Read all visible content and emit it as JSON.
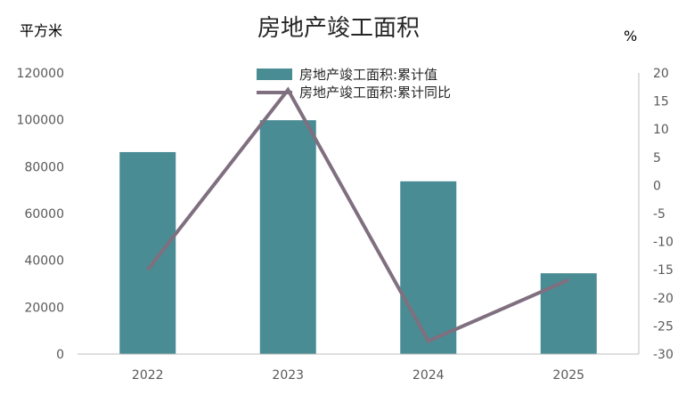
{
  "chart_data": {
    "type": "bar",
    "title": "房地产竣工面积",
    "y_left_unit": "平方米",
    "y_right_unit": "%",
    "categories": [
      "2022",
      "2023",
      "2024",
      "2025"
    ],
    "series": [
      {
        "name": "房地产竣工面积:累计值",
        "type": "bar",
        "axis": "left",
        "color": "#4a8c94",
        "values": [
          86222,
          99831,
          73743,
          34500
        ]
      },
      {
        "name": "房地产竣工面积:累计同比",
        "type": "line",
        "axis": "right",
        "color": "#7f6f7f",
        "values": [
          -15.0,
          17.0,
          -27.7,
          -16.8
        ]
      }
    ],
    "y_left_lim": [
      0,
      120000
    ],
    "y_left_ticks": [
      0,
      20000,
      40000,
      60000,
      80000,
      100000,
      120000
    ],
    "y_right_lim": [
      -30,
      20
    ],
    "y_right_ticks": [
      -30,
      -25,
      -20,
      -15,
      -10,
      -5,
      0,
      5,
      10,
      15,
      20
    ],
    "grid": false,
    "legend": "top-center"
  }
}
